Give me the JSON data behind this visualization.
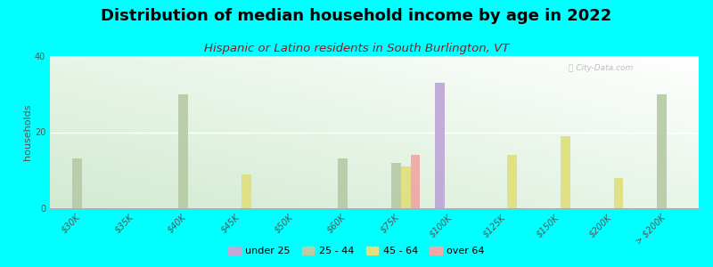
{
  "title": "Distribution of median household income by age in 2022",
  "subtitle": "Hispanic or Latino residents in South Burlington, VT",
  "xlabel": "",
  "ylabel": "households",
  "background_color": "#00FFFF",
  "watermark": "ⓘ City-Data.com",
  "categories": [
    "$30K",
    "$35K",
    "$40K",
    "$45K",
    "$50K",
    "$60K",
    "$75K",
    "$100K",
    "$125K",
    "$150K",
    "$200K",
    "> $200K"
  ],
  "groups": [
    "under 25",
    "25 - 44",
    "45 - 64",
    "over 64"
  ],
  "colors": {
    "under 25": "#C0A8D8",
    "25 - 44": "#B8CCA8",
    "45 - 64": "#E0E080",
    "over 64": "#F0A8A8"
  },
  "data": {
    "under 25": [
      0,
      0,
      0,
      0,
      0,
      0,
      0,
      33,
      0,
      0,
      0,
      0
    ],
    "25 - 44": [
      13,
      0,
      30,
      0,
      0,
      13,
      12,
      0,
      0,
      0,
      0,
      30
    ],
    "45 - 64": [
      0,
      0,
      0,
      9,
      0,
      0,
      11,
      0,
      14,
      19,
      8,
      0
    ],
    "over 64": [
      0,
      0,
      0,
      0,
      0,
      0,
      14,
      0,
      0,
      0,
      0,
      0
    ]
  },
  "ylim": [
    0,
    40
  ],
  "yticks": [
    0,
    20,
    40
  ],
  "bar_width": 0.18,
  "title_fontsize": 13,
  "subtitle_fontsize": 9.5,
  "subtitle_color": "#8B1A1A",
  "axis_label_fontsize": 8,
  "tick_fontsize": 7,
  "n_categories": 12
}
